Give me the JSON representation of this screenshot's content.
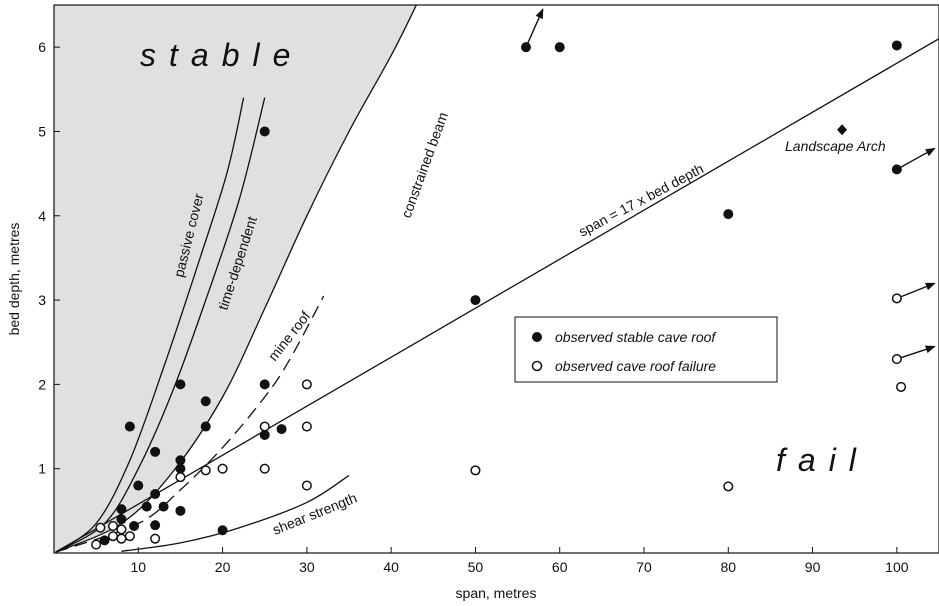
{
  "chart_data": {
    "type": "scatter",
    "xlabel": "span, metres",
    "ylabel": "bed depth, metres",
    "xlim": [
      0,
      105
    ],
    "ylim": [
      0,
      6.5
    ],
    "xticks": [
      "10",
      "20",
      "30",
      "40",
      "50",
      "60",
      "70",
      "80",
      "90",
      "100"
    ],
    "yticks": [
      "1",
      "2",
      "3",
      "4",
      "5",
      "6"
    ],
    "regions": {
      "stable": "stable",
      "fail": "fail"
    },
    "legend": {
      "stable": "observed stable cave roof",
      "failure": "observed cave roof failure"
    },
    "curves": [
      {
        "label": "passive cover",
        "points": [
          [
            0.2,
            0.01
          ],
          [
            5,
            0.35
          ],
          [
            9,
            1.1
          ],
          [
            13,
            2.2
          ],
          [
            17,
            3.4
          ],
          [
            20.5,
            4.5
          ],
          [
            22.5,
            5.4
          ]
        ]
      },
      {
        "label": "time-dependent",
        "points": [
          [
            0.2,
            0.01
          ],
          [
            6,
            0.35
          ],
          [
            10,
            1.0
          ],
          [
            14,
            1.9
          ],
          [
            18,
            3.0
          ],
          [
            22,
            4.2
          ],
          [
            25,
            5.4
          ]
        ]
      },
      {
        "label": "constrained beam",
        "points": [
          [
            0.2,
            0.01
          ],
          [
            8,
            0.35
          ],
          [
            14,
            0.95
          ],
          [
            20,
            1.85
          ],
          [
            25,
            2.9
          ],
          [
            30,
            4.0
          ],
          [
            35,
            5.0
          ],
          [
            40,
            5.9
          ],
          [
            43,
            6.5
          ]
        ]
      },
      {
        "label": "shear strength",
        "points": [
          [
            8,
            0.02
          ],
          [
            15,
            0.12
          ],
          [
            22,
            0.3
          ],
          [
            30,
            0.6
          ],
          [
            35,
            0.92
          ]
        ]
      },
      {
        "label": "span = 17 x bed depth",
        "points": [
          [
            0.2,
            0.01
          ],
          [
            105,
            6.1
          ]
        ]
      }
    ],
    "dashed_curve": {
      "label": "mine roof",
      "points": [
        [
          0.2,
          0.01
        ],
        [
          10,
          0.35
        ],
        [
          15,
          0.75
        ],
        [
          20,
          1.25
        ],
        [
          25,
          1.85
        ],
        [
          28,
          2.3
        ],
        [
          32,
          3.05
        ]
      ]
    },
    "stable_points": [
      [
        6,
        0.15
      ],
      [
        8,
        0.4
      ],
      [
        8,
        0.52
      ],
      [
        9,
        1.5
      ],
      [
        9.5,
        0.32
      ],
      [
        10,
        0.8
      ],
      [
        11,
        0.55
      ],
      [
        12,
        1.2
      ],
      [
        12,
        0.7
      ],
      [
        12,
        0.33
      ],
      [
        13,
        0.55
      ],
      [
        15,
        2.0
      ],
      [
        15,
        1.1
      ],
      [
        15,
        1.0
      ],
      [
        15,
        0.5
      ],
      [
        18,
        1.8
      ],
      [
        18,
        1.5
      ],
      [
        20,
        0.27
      ],
      [
        25,
        5.0
      ],
      [
        25,
        2.0
      ],
      [
        25,
        1.4
      ],
      [
        27,
        1.47
      ],
      [
        50,
        3.0
      ],
      [
        56,
        6.0
      ],
      [
        60,
        6.0
      ],
      [
        80,
        4.02
      ],
      [
        100,
        6.02
      ],
      [
        100,
        4.55
      ]
    ],
    "failure_points": [
      [
        5,
        0.1
      ],
      [
        5.5,
        0.3
      ],
      [
        7,
        0.2
      ],
      [
        7,
        0.32
      ],
      [
        8,
        0.17
      ],
      [
        8,
        0.28
      ],
      [
        9,
        0.2
      ],
      [
        12,
        0.17
      ],
      [
        15,
        0.9
      ],
      [
        18,
        0.98
      ],
      [
        20,
        1.0
      ],
      [
        25,
        1.5
      ],
      [
        25,
        1.0
      ],
      [
        30,
        2.0
      ],
      [
        30,
        1.5
      ],
      [
        30,
        0.8
      ],
      [
        50,
        0.98
      ],
      [
        80,
        0.79
      ],
      [
        100,
        3.02
      ],
      [
        100,
        2.3
      ],
      [
        100.5,
        1.97
      ]
    ],
    "special_point": {
      "label": "Landscape Arch",
      "x": 93.5,
      "y": 5.02
    },
    "arrows": [
      {
        "from": [
          56,
          6.0
        ],
        "to": [
          58,
          6.45
        ]
      },
      {
        "from": [
          100,
          4.55
        ],
        "to": [
          104.5,
          4.8
        ]
      },
      {
        "from": [
          100,
          3.02
        ],
        "to": [
          104.5,
          3.2
        ]
      },
      {
        "from": [
          100,
          2.3
        ],
        "to": [
          104.5,
          2.45
        ]
      }
    ]
  }
}
